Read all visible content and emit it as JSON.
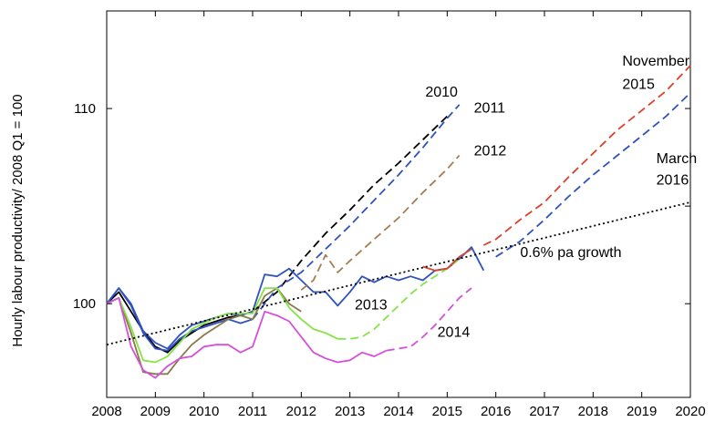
{
  "chart_data": {
    "type": "line",
    "title": "",
    "ylabel": "Hourly labour productivity/ 2008 Q1 = 100",
    "xlabel": "",
    "xlim": [
      2008,
      2020
    ],
    "ylim": [
      95.2,
      115
    ],
    "x_ticks": [
      "2008",
      "2009",
      "2010",
      "2011",
      "2012",
      "2013",
      "2014",
      "2015",
      "2016",
      "2017",
      "2018",
      "2019",
      "2020"
    ],
    "y_ticks": [
      "100",
      "110"
    ],
    "grid": false,
    "series": [
      {
        "name": "",
        "color": "#000000",
        "style": "solid",
        "points": [
          [
            2008.0,
            100.0
          ],
          [
            2008.25,
            100.6
          ],
          [
            2008.5,
            99.6
          ],
          [
            2008.75,
            98.6
          ],
          [
            2009.0,
            97.8
          ],
          [
            2009.25,
            97.5
          ],
          [
            2009.5,
            98.1
          ],
          [
            2009.75,
            98.5
          ],
          [
            2010.0,
            98.9
          ],
          [
            2010.25,
            99.1
          ],
          [
            2010.5,
            99.3
          ],
          [
            2010.75,
            99.4
          ],
          [
            2011.0,
            99.6
          ]
        ]
      },
      {
        "name": "2010",
        "color": "#000000",
        "style": "dashed",
        "points": [
          [
            2011.0,
            99.6
          ],
          [
            2011.5,
            100.6
          ],
          [
            2012.0,
            102.2
          ],
          [
            2012.5,
            103.6
          ],
          [
            2013.0,
            104.8
          ],
          [
            2013.5,
            106.1
          ],
          [
            2014.0,
            107.2
          ],
          [
            2014.5,
            108.4
          ],
          [
            2015.0,
            109.6
          ]
        ]
      },
      {
        "name": "",
        "color": "#2f52c0",
        "style": "solid",
        "points": [
          [
            2008.0,
            100.0
          ],
          [
            2008.25,
            100.8
          ],
          [
            2008.5,
            99.9
          ],
          [
            2008.75,
            98.5
          ],
          [
            2009.0,
            97.7
          ],
          [
            2009.25,
            97.6
          ],
          [
            2009.5,
            98.2
          ],
          [
            2009.75,
            98.6
          ],
          [
            2010.0,
            98.8
          ],
          [
            2010.25,
            99.0
          ],
          [
            2010.5,
            99.2
          ],
          [
            2010.75,
            99.0
          ],
          [
            2011.0,
            99.2
          ]
        ]
      },
      {
        "name": "2011",
        "color": "#2f52c0",
        "style": "dashed",
        "points": [
          [
            2011.0,
            99.2
          ],
          [
            2011.5,
            100.8
          ],
          [
            2012.0,
            101.6
          ],
          [
            2012.5,
            102.8
          ],
          [
            2013.0,
            104.0
          ],
          [
            2013.5,
            105.3
          ],
          [
            2014.0,
            106.6
          ],
          [
            2014.5,
            108.0
          ],
          [
            2015.0,
            109.5
          ],
          [
            2015.25,
            110.2
          ]
        ]
      },
      {
        "name": "",
        "color": "#2f52c0",
        "style": "solid",
        "points": [
          [
            2008.0,
            100.0
          ],
          [
            2008.25,
            100.8
          ],
          [
            2008.5,
            100.0
          ],
          [
            2008.75,
            98.6
          ],
          [
            2009.0,
            98.0
          ],
          [
            2009.25,
            97.7
          ],
          [
            2009.5,
            98.4
          ],
          [
            2009.75,
            98.9
          ],
          [
            2010.0,
            99.1
          ],
          [
            2010.25,
            99.3
          ],
          [
            2010.5,
            99.5
          ],
          [
            2010.75,
            99.4
          ],
          [
            2011.0,
            99.6
          ],
          [
            2011.25,
            101.5
          ],
          [
            2011.5,
            101.4
          ],
          [
            2011.75,
            101.8
          ],
          [
            2012.0,
            101.2
          ],
          [
            2012.25,
            100.6
          ],
          [
            2012.5,
            100.6
          ],
          [
            2012.75,
            99.9
          ],
          [
            2013.0,
            100.6
          ],
          [
            2013.25,
            101.4
          ],
          [
            2013.5,
            101.1
          ],
          [
            2013.75,
            101.4
          ],
          [
            2014.0,
            101.2
          ],
          [
            2014.25,
            101.4
          ],
          [
            2014.5,
            101.2
          ],
          [
            2014.75,
            101.7
          ],
          [
            2015.0,
            101.8
          ],
          [
            2015.25,
            102.3
          ],
          [
            2015.5,
            102.9
          ],
          [
            2015.75,
            101.7
          ]
        ]
      },
      {
        "name": "2012",
        "color": "#a57d55",
        "style": "dashed",
        "points": [
          [
            2012.0,
            100.7
          ],
          [
            2012.25,
            101.2
          ],
          [
            2012.5,
            102.5
          ],
          [
            2012.75,
            101.6
          ],
          [
            2013.0,
            102.2
          ],
          [
            2013.5,
            103.3
          ],
          [
            2014.0,
            104.4
          ],
          [
            2014.5,
            105.7
          ],
          [
            2015.0,
            106.9
          ],
          [
            2015.25,
            107.6
          ]
        ]
      },
      {
        "name": "",
        "color": "#8a7a4a",
        "style": "solid",
        "points": [
          [
            2008.0,
            100.0
          ],
          [
            2008.25,
            100.3
          ],
          [
            2008.5,
            98.5
          ],
          [
            2008.75,
            96.5
          ],
          [
            2009.0,
            96.4
          ],
          [
            2009.25,
            96.4
          ],
          [
            2009.5,
            97.2
          ],
          [
            2009.75,
            97.9
          ],
          [
            2010.0,
            98.4
          ],
          [
            2010.25,
            98.8
          ],
          [
            2010.5,
            99.2
          ],
          [
            2010.75,
            99.4
          ],
          [
            2011.0,
            99.2
          ],
          [
            2011.25,
            100.4
          ],
          [
            2011.5,
            100.8
          ],
          [
            2011.75,
            100.0
          ],
          [
            2012.0,
            99.6
          ]
        ]
      },
      {
        "name": "",
        "color": "#86e346",
        "style": "solid",
        "points": [
          [
            2008.0,
            100.0
          ],
          [
            2008.25,
            100.3
          ],
          [
            2008.5,
            98.8
          ],
          [
            2008.75,
            97.1
          ],
          [
            2009.0,
            97.0
          ],
          [
            2009.25,
            97.3
          ],
          [
            2009.5,
            98.0
          ],
          [
            2009.75,
            98.7
          ],
          [
            2010.0,
            99.0
          ],
          [
            2010.25,
            99.3
          ],
          [
            2010.5,
            99.5
          ],
          [
            2010.75,
            99.5
          ],
          [
            2011.0,
            99.5
          ],
          [
            2011.25,
            100.8
          ],
          [
            2011.5,
            100.8
          ],
          [
            2011.75,
            99.8
          ],
          [
            2012.0,
            99.2
          ],
          [
            2012.25,
            98.7
          ],
          [
            2012.5,
            98.5
          ],
          [
            2012.75,
            98.2
          ]
        ]
      },
      {
        "name": "2013",
        "color": "#86e346",
        "style": "dashed",
        "points": [
          [
            2012.75,
            98.2
          ],
          [
            2013.0,
            98.2
          ],
          [
            2013.25,
            98.3
          ],
          [
            2013.5,
            98.7
          ],
          [
            2013.75,
            99.3
          ],
          [
            2014.0,
            99.9
          ],
          [
            2014.25,
            100.5
          ],
          [
            2014.5,
            101.0
          ],
          [
            2014.75,
            101.4
          ],
          [
            2015.0,
            101.8
          ],
          [
            2015.25,
            102.3
          ]
        ]
      },
      {
        "name": "",
        "color": "#d64fd9",
        "style": "solid",
        "points": [
          [
            2008.0,
            100.0
          ],
          [
            2008.25,
            100.3
          ],
          [
            2008.5,
            97.8
          ],
          [
            2008.75,
            96.6
          ],
          [
            2009.0,
            96.2
          ],
          [
            2009.25,
            96.8
          ],
          [
            2009.5,
            97.2
          ],
          [
            2009.75,
            97.3
          ],
          [
            2010.0,
            97.8
          ],
          [
            2010.25,
            97.9
          ],
          [
            2010.5,
            97.9
          ],
          [
            2010.75,
            97.5
          ],
          [
            2011.0,
            97.8
          ],
          [
            2011.25,
            99.6
          ],
          [
            2011.5,
            99.4
          ],
          [
            2011.75,
            99.1
          ],
          [
            2012.0,
            98.3
          ],
          [
            2012.25,
            97.5
          ],
          [
            2012.5,
            97.2
          ],
          [
            2012.75,
            97.0
          ],
          [
            2013.0,
            97.1
          ],
          [
            2013.25,
            97.5
          ],
          [
            2013.5,
            97.3
          ],
          [
            2013.75,
            97.6
          ]
        ]
      },
      {
        "name": "2014",
        "color": "#d64fd9",
        "style": "dashed",
        "points": [
          [
            2013.75,
            97.6
          ],
          [
            2014.0,
            97.7
          ],
          [
            2014.25,
            97.8
          ],
          [
            2014.5,
            98.3
          ],
          [
            2014.75,
            98.9
          ],
          [
            2015.0,
            99.6
          ],
          [
            2015.25,
            100.3
          ],
          [
            2015.5,
            100.8
          ]
        ]
      },
      {
        "name": "November 2015",
        "color": "#d9432b",
        "style": "solid",
        "points": [
          [
            2014.5,
            101.9
          ],
          [
            2014.75,
            101.7
          ],
          [
            2015.0,
            101.8
          ],
          [
            2015.25,
            102.4
          ],
          [
            2015.5,
            102.8
          ]
        ]
      },
      {
        "name": "November 2015",
        "color": "#d9432b",
        "style": "dashed",
        "points": [
          [
            2015.75,
            103.0
          ],
          [
            2016.0,
            103.3
          ],
          [
            2016.5,
            104.3
          ],
          [
            2017.0,
            105.2
          ],
          [
            2017.5,
            106.5
          ],
          [
            2018.0,
            107.7
          ],
          [
            2018.5,
            108.9
          ],
          [
            2019.0,
            109.9
          ],
          [
            2019.5,
            110.9
          ],
          [
            2020.0,
            112.2
          ]
        ]
      },
      {
        "name": "March 2016",
        "color": "#2f52c0",
        "style": "dashed",
        "points": [
          [
            2016.0,
            102.4
          ],
          [
            2016.5,
            103.2
          ],
          [
            2017.0,
            104.3
          ],
          [
            2017.5,
            105.5
          ],
          [
            2018.0,
            106.6
          ],
          [
            2018.5,
            107.6
          ],
          [
            2019.0,
            108.6
          ],
          [
            2019.5,
            109.6
          ],
          [
            2020.0,
            110.8
          ]
        ]
      },
      {
        "name": "0.6% pa growth",
        "color": "#000000",
        "style": "dotted",
        "points": [
          [
            2008.0,
            97.9
          ],
          [
            2020.0,
            105.2
          ]
        ]
      }
    ],
    "annotations": [
      {
        "text": "2010",
        "x": 2014.55,
        "y": 110.6
      },
      {
        "text": "2011",
        "x": 2015.55,
        "y": 109.8
      },
      {
        "text": "2012",
        "x": 2015.55,
        "y": 107.6
      },
      {
        "text": "2013",
        "x": 2013.1,
        "y": 99.7
      },
      {
        "text": "2014",
        "x": 2014.8,
        "y": 98.3
      },
      {
        "text": "November",
        "x": 2018.6,
        "y": 112.2
      },
      {
        "text": "2015",
        "x": 2018.6,
        "y": 111.0
      },
      {
        "text": "March",
        "x": 2019.3,
        "y": 107.2
      },
      {
        "text": "2016",
        "x": 2019.3,
        "y": 106.1
      },
      {
        "text": "0.6% pa growth",
        "x": 2016.5,
        "y": 102.4
      }
    ]
  }
}
